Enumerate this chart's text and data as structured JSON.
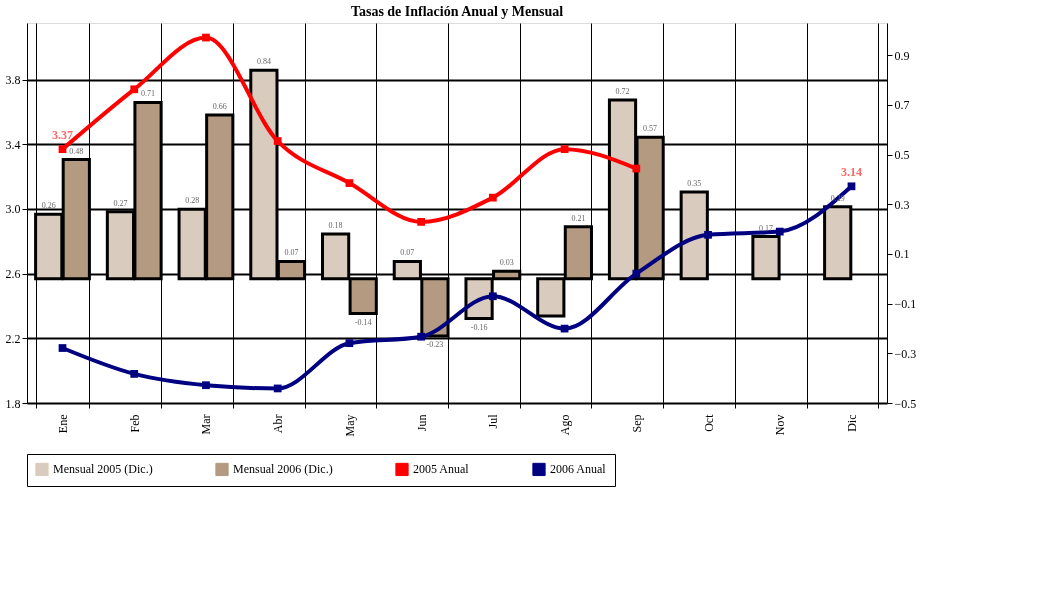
{
  "chart_data": {
    "type": "bar",
    "title": "Tasas de Inflación Anual y Mensual",
    "categories": [
      "Ene",
      "Feb",
      "Mar",
      "Abr",
      "May",
      "Jun",
      "Jul",
      "Ago",
      "Sep",
      "Oct",
      "Nov",
      "Dic"
    ],
    "series": [
      {
        "name": "Mensual 2005 (Dic.)",
        "axis": "y2",
        "color": "#d9cbbd",
        "values": [
          0.26,
          0.27,
          0.28,
          0.84,
          0.18,
          0.07,
          -0.16,
          -0.15,
          0.72,
          0.35,
          0.17,
          0.29
        ],
        "value_labels": [
          "0.26",
          "0.27",
          "0.28",
          "0.84",
          "0.18",
          "0.07",
          "-0.16",
          null,
          "0.72",
          "0.35",
          "0.17",
          "0.29"
        ]
      },
      {
        "name": "Mensual 2006 (Dic.)",
        "axis": "y2",
        "color": "#b39a80",
        "values": [
          0.48,
          0.71,
          0.66,
          0.07,
          -0.14,
          -0.23,
          0.03,
          0.21,
          0.57,
          null,
          null,
          null
        ],
        "value_labels": [
          "0.48",
          "0.71",
          "0.66",
          "0.07",
          "-0.14",
          "-0.23",
          "0.03",
          "0.21",
          "0.57",
          null,
          null,
          null
        ]
      },
      {
        "name": "2005 Anual",
        "type": "line",
        "axis": "y",
        "color": "#ff0000",
        "values": [
          3.37,
          3.74,
          4.06,
          3.42,
          3.16,
          2.92,
          3.07,
          3.37,
          3.25,
          null,
          null,
          null
        ],
        "value_labels": [
          "3.37",
          null,
          null,
          null,
          null,
          null,
          null,
          null,
          null,
          null,
          null,
          null
        ]
      },
      {
        "name": "2006 Anual",
        "type": "line",
        "axis": "y",
        "color": "#000080",
        "values": [
          2.14,
          1.98,
          1.91,
          1.89,
          2.17,
          2.21,
          2.46,
          2.26,
          2.6,
          2.84,
          2.86,
          3.14
        ],
        "value_labels": [
          null,
          null,
          null,
          null,
          null,
          null,
          null,
          null,
          null,
          null,
          null,
          "3.14"
        ]
      }
    ],
    "ylim": [
      1.8,
      4.15
    ],
    "yticks": [
      1.8,
      2.2,
      2.6,
      {
        "value": 3.0,
        "label": "3.0"
      },
      3.4,
      3.8
    ],
    "y2lim": [
      -0.5,
      1.03
    ],
    "y2ticks": [
      -0.5,
      -0.3,
      -0.1,
      0.1,
      0.3,
      0.5,
      0.7,
      0.9
    ],
    "grid": true,
    "legend": "bottom",
    "marker": "square",
    "line_style": "solid"
  }
}
